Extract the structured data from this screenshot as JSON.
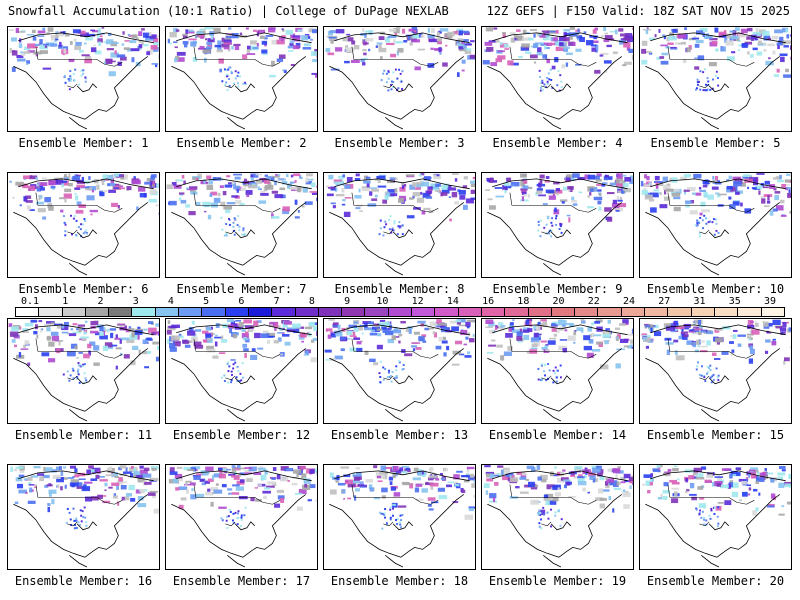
{
  "header": {
    "title_left": "Snowfall Accumulation (10:1 Ratio) | College of DuPage NEXLAB",
    "title_right": "12Z GEFS | F150 Valid: 18Z SAT NOV 15 2025"
  },
  "colorbar": {
    "labels": [
      "0.1",
      "1",
      "2",
      "3",
      "4",
      "5",
      "6",
      "7",
      "8",
      "9",
      "10",
      "12",
      "14",
      "16",
      "18",
      "20",
      "22",
      "24",
      "27",
      "31",
      "35",
      "39"
    ],
    "colors": [
      "#ffffff",
      "#e6e6e6",
      "#cccccc",
      "#a6a6a6",
      "#7a7a7a",
      "#9ee8ee",
      "#86c3f0",
      "#6c9cf2",
      "#4a6ef0",
      "#2a3ff0",
      "#1a1ad8",
      "#5a2ad8",
      "#6f2fc8",
      "#7f33b8",
      "#8f37b0",
      "#9a44c0",
      "#b04ad0",
      "#c058d8",
      "#cf5ac8",
      "#d860b8",
      "#e064a8",
      "#e06a98",
      "#e07088",
      "#e07a80",
      "#e48a8a",
      "#e89a90",
      "#eca898",
      "#f0b8a0",
      "#f2c6a8",
      "#f5d2b4",
      "#f8dfc4",
      "#fbebd6",
      "#fdf4e6"
    ]
  },
  "panels": [
    {
      "label": "Ensemble Member: 1"
    },
    {
      "label": "Ensemble Member: 2"
    },
    {
      "label": "Ensemble Member: 3"
    },
    {
      "label": "Ensemble Member: 4"
    },
    {
      "label": "Ensemble Member: 5"
    },
    {
      "label": "Ensemble Member: 6"
    },
    {
      "label": "Ensemble Member: 7"
    },
    {
      "label": "Ensemble Member: 8"
    },
    {
      "label": "Ensemble Member: 9"
    },
    {
      "label": "Ensemble Member: 10"
    },
    {
      "label": "Ensemble Member: 11"
    },
    {
      "label": "Ensemble Member: 12"
    },
    {
      "label": "Ensemble Member: 13"
    },
    {
      "label": "Ensemble Member: 14"
    },
    {
      "label": "Ensemble Member: 15"
    },
    {
      "label": "Ensemble Member: 16"
    },
    {
      "label": "Ensemble Member: 17"
    },
    {
      "label": "Ensemble Member: 18"
    },
    {
      "label": "Ensemble Member: 19"
    },
    {
      "label": "Ensemble Member: 20"
    }
  ]
}
